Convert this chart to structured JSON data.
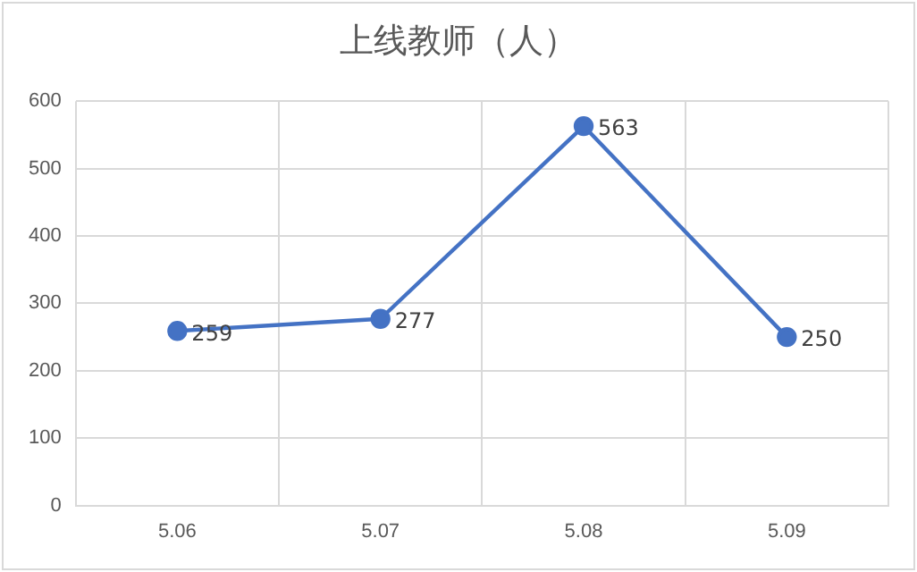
{
  "chart_data": {
    "type": "line",
    "title": "上线教师（人）",
    "categories": [
      "5.06",
      "5.07",
      "5.08",
      "5.09"
    ],
    "series": [
      {
        "color": "#4472c4",
        "values": [
          259,
          277,
          563,
          250
        ]
      }
    ],
    "ylim": [
      0,
      600
    ],
    "yticks": [
      0,
      100,
      200,
      300,
      400,
      500,
      600
    ],
    "grid": true,
    "marker": "circle",
    "data_labels": true,
    "legend": false
  }
}
